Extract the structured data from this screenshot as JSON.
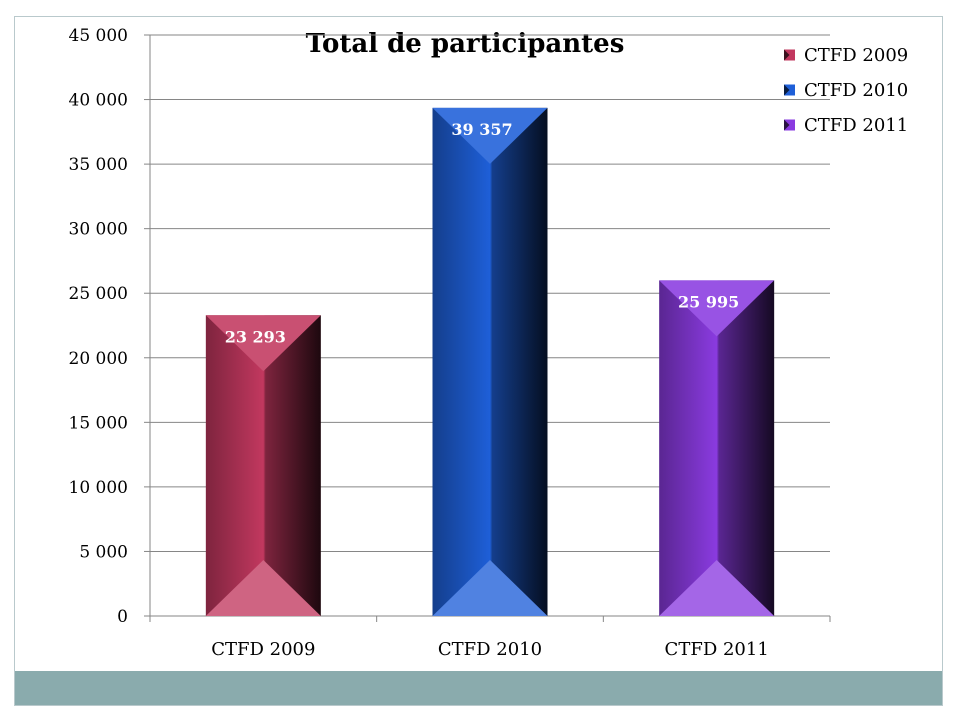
{
  "chart_data": {
    "type": "bar",
    "title": "Total de participantes",
    "categories": [
      "CTFD 2009",
      "CTFD 2010",
      "CTFD 2011"
    ],
    "values": [
      23293,
      39357,
      25995
    ],
    "value_labels": [
      "23 293",
      "39 357",
      "25 995"
    ],
    "series": [
      {
        "name": "CTFD 2009",
        "color": "#c2385f"
      },
      {
        "name": "CTFD 2010",
        "color": "#1e5fd8"
      },
      {
        "name": "CTFD 2011",
        "color": "#8a3be0"
      }
    ],
    "ylim": [
      0,
      45000
    ],
    "yticks": [
      0,
      5000,
      10000,
      15000,
      20000,
      25000,
      30000,
      35000,
      40000,
      45000
    ],
    "ytick_labels": [
      "0",
      "5 000",
      "10 000",
      "15 000",
      "20 000",
      "25 000",
      "30 000",
      "35 000",
      "40 000",
      "45 000"
    ],
    "xlabel": "",
    "ylabel": "",
    "grid": true,
    "legend_position": "top-right"
  },
  "colors": {
    "footer": "#8aabad",
    "border": "#b9c9cc",
    "gridline": "#868686"
  }
}
